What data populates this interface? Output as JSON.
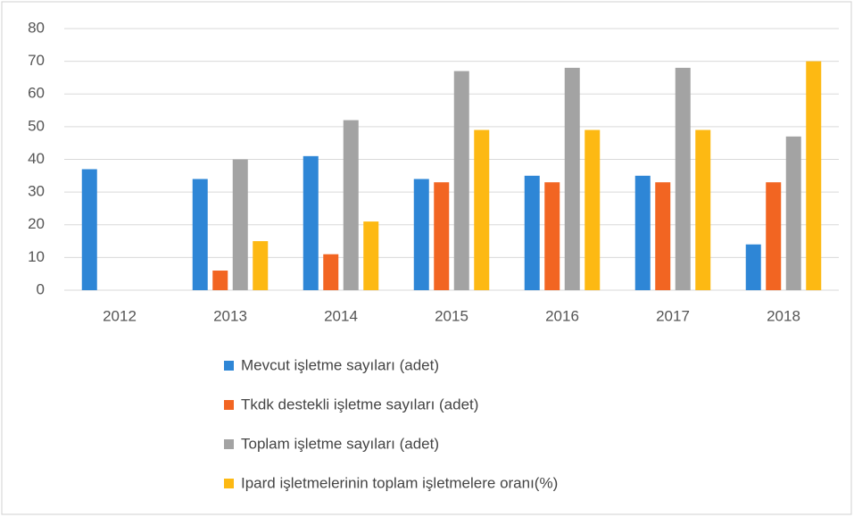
{
  "chart_data": {
    "type": "bar",
    "categories": [
      "2012",
      "2013",
      "2014",
      "2015",
      "2016",
      "2017",
      "2018"
    ],
    "series": [
      {
        "name": "Mevcut işletme sayıları (adet)",
        "color": "#2e86d6",
        "values": [
          37,
          34,
          41,
          34,
          35,
          35,
          14
        ]
      },
      {
        "name": "Tkdk destekli işletme sayıları (adet)",
        "color": "#f26522",
        "values": [
          null,
          6,
          11,
          33,
          33,
          33,
          33
        ]
      },
      {
        "name": "Toplam işletme sayıları (adet)",
        "color": "#a3a3a3",
        "values": [
          null,
          40,
          52,
          67,
          68,
          68,
          47
        ]
      },
      {
        "name": "Ipard işletmelerinin toplam işletmelere oranı(%)",
        "color": "#fdb913",
        "values": [
          null,
          15,
          21,
          49,
          49,
          49,
          70
        ]
      }
    ],
    "ylim": [
      0,
      80
    ],
    "yticks": [
      0,
      10,
      20,
      30,
      40,
      50,
      60,
      70,
      80
    ],
    "grid": true,
    "legend": "bottom"
  }
}
